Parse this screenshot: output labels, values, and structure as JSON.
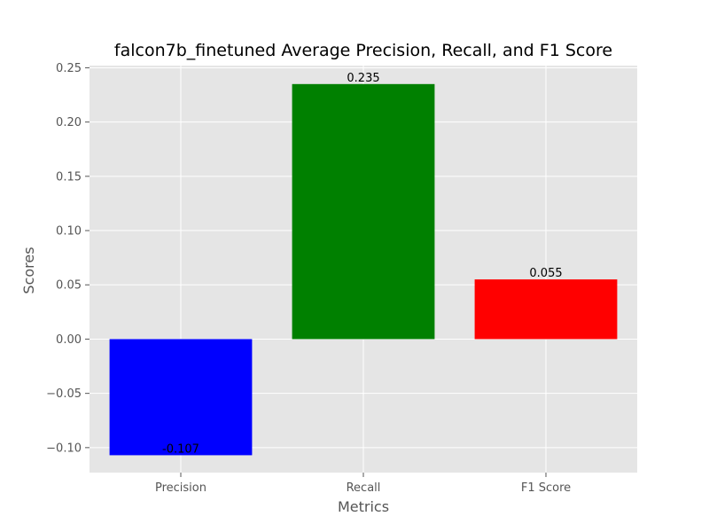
{
  "chart_data": {
    "type": "bar",
    "title": "falcon7b_finetuned Average Precision, Recall, and F1 Score",
    "xlabel": "Metrics",
    "ylabel": "Scores",
    "categories": [
      "Precision",
      "Recall",
      "F1 Score"
    ],
    "values": [
      -0.107,
      0.235,
      0.055
    ],
    "data_labels": [
      "-0.107",
      "0.235",
      "0.055"
    ],
    "bar_colors": [
      "#0000ff",
      "#008000",
      "#ff0000"
    ],
    "ylim": [
      -0.123,
      0.252
    ],
    "yticks": [
      -0.1,
      -0.05,
      0.0,
      0.05,
      0.1,
      0.15,
      0.2,
      0.25
    ],
    "ytick_labels": [
      "−0.10",
      "−0.05",
      "0.00",
      "0.05",
      "0.10",
      "0.15",
      "0.20",
      "0.25"
    ],
    "grid": true,
    "style": {
      "plot_background": "#e5e5e5",
      "grid_color": "#ffffff"
    }
  }
}
